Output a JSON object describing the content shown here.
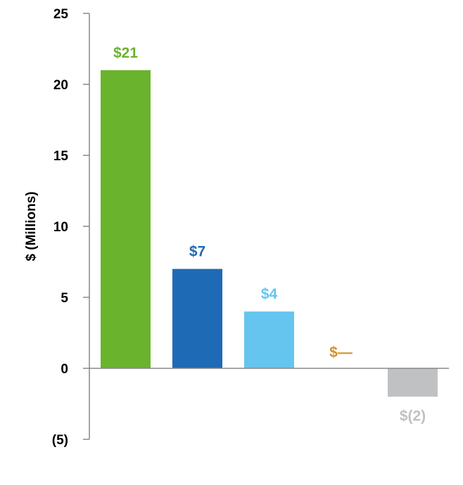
{
  "chart_data": {
    "type": "bar",
    "ylabel": "$ (Millions)",
    "ylim": [
      -5,
      25
    ],
    "yticks": [
      {
        "value": 25,
        "label": "25"
      },
      {
        "value": 20,
        "label": "20"
      },
      {
        "value": 15,
        "label": "15"
      },
      {
        "value": 10,
        "label": "10"
      },
      {
        "value": 5,
        "label": "5"
      },
      {
        "value": 0,
        "label": "0"
      },
      {
        "value": -5,
        "label": "(5)"
      }
    ],
    "values": [
      21,
      7,
      4,
      0,
      -2
    ],
    "data_labels": [
      "$21",
      "$7",
      "$4",
      "$—",
      "$(2)"
    ],
    "colors": [
      "#6ab42d",
      "#1f6ab4",
      "#65c5ef",
      "#d4912a",
      "#c0c1c3"
    ],
    "grid": false,
    "legend": false
  }
}
